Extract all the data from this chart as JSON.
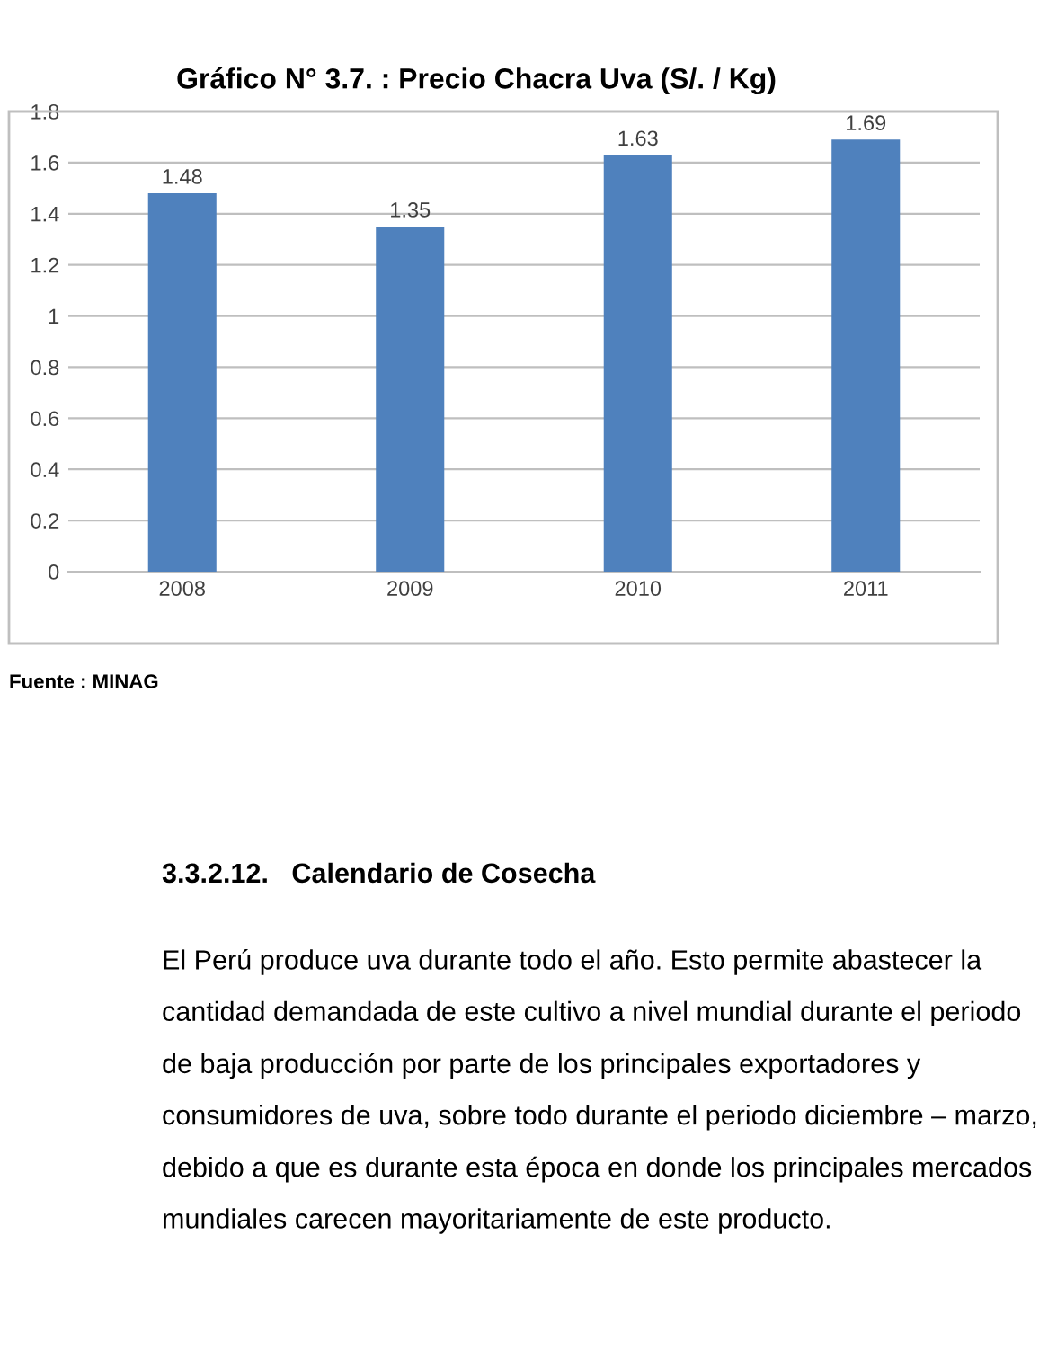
{
  "chart_data": {
    "type": "bar",
    "title": "Gráfico N° 3.7. : Precio Chacra Uva (S/. / Kg)",
    "categories": [
      "2008",
      "2009",
      "2010",
      "2011"
    ],
    "values": [
      1.48,
      1.35,
      1.63,
      1.69
    ],
    "color": "#4f81bd",
    "ylim": [
      0,
      1.8
    ],
    "yticks": [
      0,
      0.2,
      0.4,
      0.6,
      0.8,
      1,
      1.2,
      1.4,
      1.6,
      1.8
    ],
    "grid": "y",
    "data_labels": true,
    "annotations": [
      "Fuente : MINAG",
      "3.3.2.12.   Calendario de Cosecha",
      "El Perú produce uva durante todo el año. Esto permite abastecer la cantidad demandada de este cultivo a nivel mundial durante el periodo de baja producción por parte de los principales exportadores y consumidores de uva, sobre todo durante el periodo diciembre – marzo, debido a que es durante esta época en donde los principales mercados mundiales carecen mayoritariamente de este producto."
    ]
  }
}
